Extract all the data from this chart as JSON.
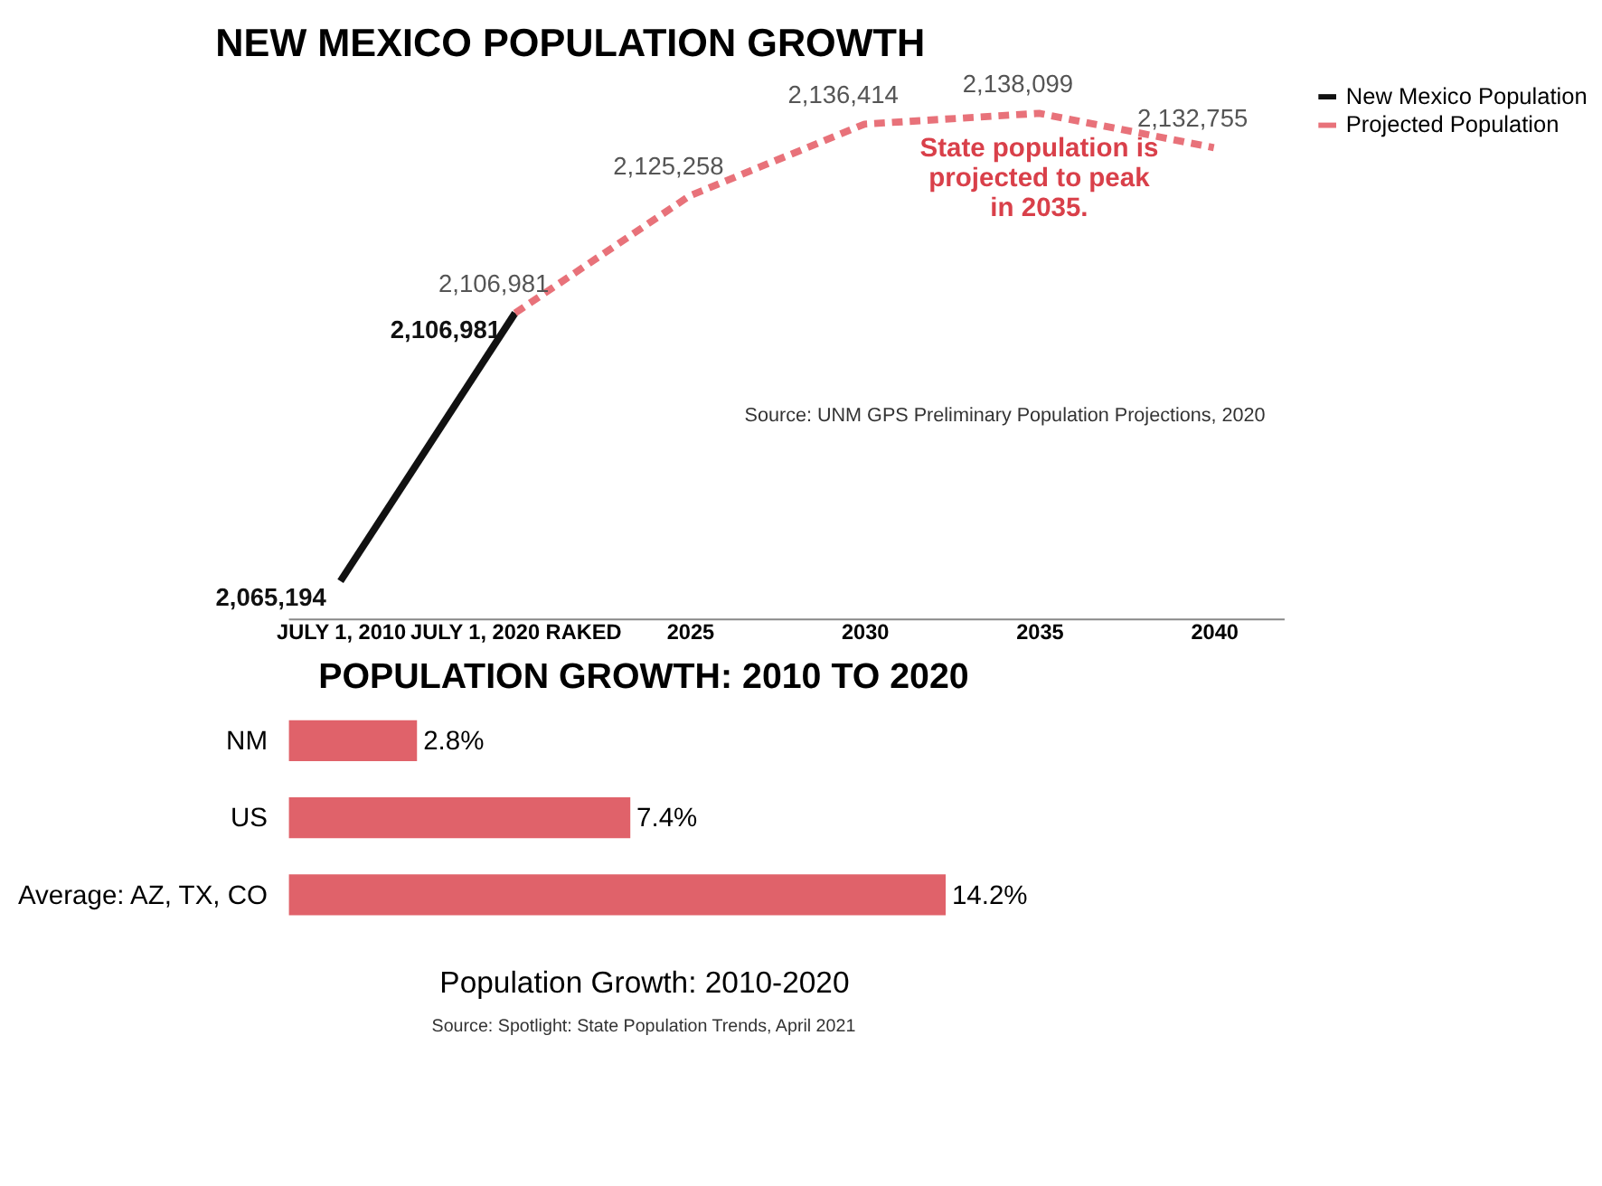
{
  "chart_data": [
    {
      "type": "line",
      "title": "NEW MEXICO POPULATION GROWTH",
      "categories": [
        "JULY 1, 2010",
        "JULY 1, 2020 RAKED",
        "2025",
        "2030",
        "2035",
        "2040"
      ],
      "series": [
        {
          "name": "New Mexico Population",
          "color": "#111111",
          "line_style": "solid",
          "values": [
            2065194,
            2106981,
            null,
            null,
            null,
            null
          ],
          "value_labels": [
            "2,065,194",
            "2,106,981",
            null,
            null,
            null,
            null
          ]
        },
        {
          "name": "Projected Population",
          "color": "#e8727a",
          "line_style": "dashed",
          "values": [
            null,
            2106981,
            2125258,
            2136414,
            2138099,
            2132755
          ],
          "value_labels": [
            null,
            "2,106,981",
            "2,125,258",
            "2,136,414",
            "2,138,099",
            "2,132,755"
          ]
        }
      ],
      "legend": "right",
      "tick_labels": "x",
      "grid": false,
      "marker": "none",
      "annotations": [
        {
          "text": "State population is projected to peak in 2035.",
          "x": "2035",
          "y": 2138099
        },
        "Source: UNM GPS Preliminary Population Projections, 2020"
      ]
    },
    {
      "type": "bar",
      "orientation": "horizontal",
      "title": "POPULATION GROWTH: 2010 TO 2020",
      "xlabel": "Population Growth: 2010-2020",
      "categories": [
        "NM",
        "US",
        "Average: AZ, TX, CO"
      ],
      "values": [
        2.8,
        7.4,
        14.2
      ],
      "color": "#e0626a",
      "value_labels": [
        "2.8%",
        "7.4%",
        "14.2%"
      ],
      "tick_labels": "y",
      "grid": false,
      "annotations": [
        "Source: Spotlight: State Population Trends, April 2021"
      ]
    }
  ]
}
